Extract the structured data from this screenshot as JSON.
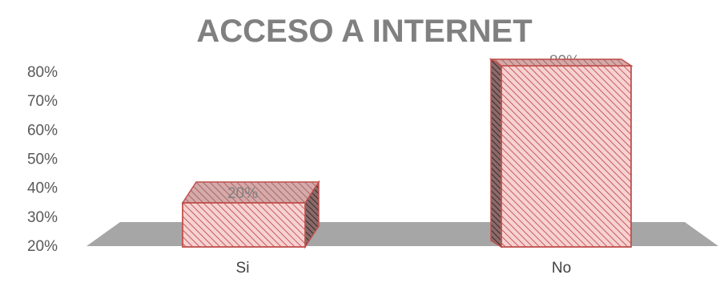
{
  "chart_data": {
    "type": "bar",
    "title": "ACCESO A INTERNET",
    "categories": [
      "Si",
      "No"
    ],
    "values": [
      20,
      80
    ],
    "data_labels": [
      "20%",
      "80%"
    ],
    "ylim": [
      20,
      80
    ],
    "yticks": [
      20,
      30,
      40,
      50,
      60,
      70,
      80
    ],
    "ytick_labels": [
      "20%",
      "30%",
      "40%",
      "50%",
      "60%",
      "70%",
      "80%"
    ],
    "xlabel": "",
    "ylabel": "",
    "grid": false,
    "legend": "none",
    "style": "3d-column",
    "colors": {
      "bar_fill": "#f6d2d2",
      "bar_hatch": "#c85a5a",
      "bar_edge": "#c0504d",
      "floor": "#a6a6a6",
      "title": "#808080",
      "ticks": "#595959"
    }
  }
}
